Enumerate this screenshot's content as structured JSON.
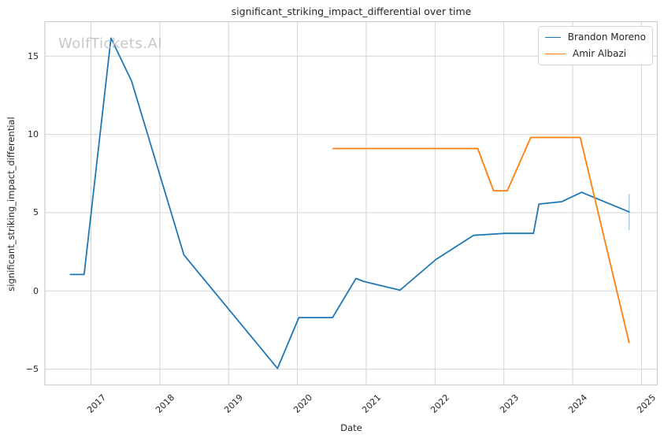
{
  "figure": {
    "title": "significant_striking_impact_differential over time",
    "watermark": "WolfTickets.AI",
    "background": "#ffffff",
    "grid_color": "#d5d5d5",
    "text_color": "#262626",
    "watermark_color": "#c8c8c8"
  },
  "chart_data": {
    "type": "line",
    "title": "significant_striking_impact_differential over time",
    "xlabel": "Date",
    "ylabel": "significant_striking_impact_differential",
    "grid": true,
    "legend_position": "upper right",
    "xlim": [
      2016.33,
      2025.23
    ],
    "ylim": [
      -6.0,
      17.2
    ],
    "xticks": {
      "values": [
        2017,
        2018,
        2019,
        2020,
        2021,
        2022,
        2023,
        2024,
        2025
      ],
      "labels": [
        "2017",
        "2018",
        "2019",
        "2020",
        "2021",
        "2022",
        "2023",
        "2024",
        "2025"
      ]
    },
    "yticks": {
      "values": [
        -5,
        0,
        5,
        10,
        15
      ],
      "labels": [
        "−5",
        "0",
        "5",
        "10",
        "15"
      ]
    },
    "series": [
      {
        "name": "Brandon Moreno",
        "color": "#1f77b4",
        "x": [
          2016.7,
          2016.9,
          2017.29,
          2017.59,
          2018.35,
          2019.71,
          2020.02,
          2020.51,
          2020.85,
          2020.97,
          2021.49,
          2022.01,
          2022.56,
          2023.01,
          2023.43,
          2023.51,
          2023.84,
          2024.13,
          2024.82
        ],
        "y": [
          1.05,
          1.05,
          16.15,
          13.4,
          2.3,
          -4.95,
          -1.7,
          -1.7,
          0.8,
          0.6,
          0.05,
          2.0,
          3.55,
          3.68,
          3.68,
          5.55,
          5.7,
          6.3,
          5.05
        ]
      },
      {
        "name": "Amir Albazi",
        "color": "#ff7f0e",
        "x": [
          2020.52,
          2022.62,
          2022.85,
          2023.05,
          2023.39,
          2024.11,
          2024.82
        ],
        "y": [
          9.1,
          9.1,
          6.4,
          6.4,
          9.8,
          9.8,
          -3.3
        ]
      }
    ],
    "error_bar": {
      "series": "Brandon Moreno",
      "x": 2024.82,
      "y_low": 3.9,
      "y_high": 6.2,
      "color": "#a5c9e1"
    }
  }
}
